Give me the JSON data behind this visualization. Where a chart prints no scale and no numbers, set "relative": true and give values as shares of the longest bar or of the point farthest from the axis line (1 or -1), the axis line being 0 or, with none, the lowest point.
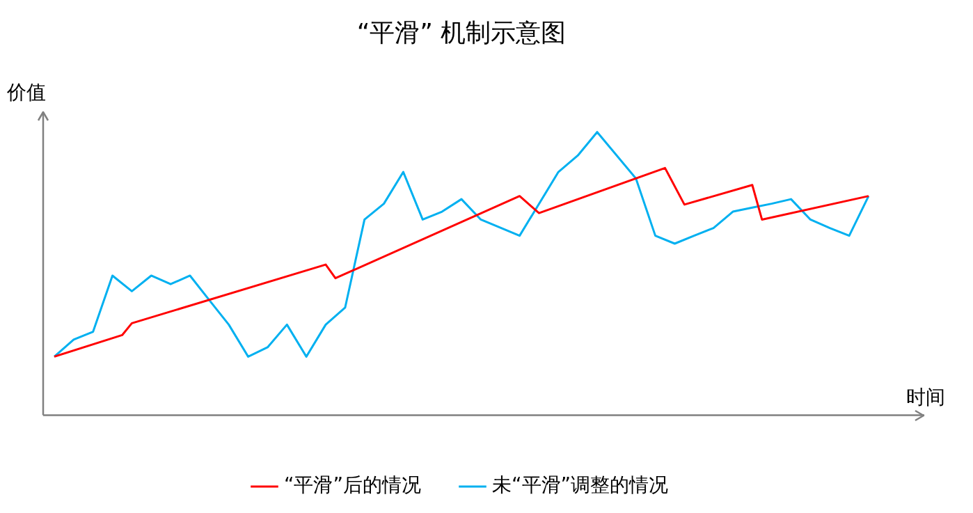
{
  "chart_data": {
    "type": "line",
    "title": "“平滑” 机制示意图",
    "xlabel": "时间",
    "ylabel": "价值",
    "relative": true,
    "legend": "bottom",
    "marker": "none",
    "line_style": "solid",
    "categories": [
      null,
      null,
      null,
      null,
      null,
      null,
      null,
      null,
      null,
      null,
      null,
      null,
      null,
      null,
      null,
      null,
      null,
      null,
      null,
      null,
      null,
      null,
      null,
      null,
      null,
      null,
      null,
      null,
      null,
      null,
      null,
      null,
      null,
      null,
      null,
      null,
      null,
      null,
      null,
      null,
      null,
      null,
      null,
      null,
      null,
      null,
      null,
      null,
      null,
      null,
      null,
      null,
      null,
      null,
      null,
      null,
      null,
      null,
      null,
      null,
      null,
      null,
      null,
      null,
      null,
      null,
      null,
      null,
      null,
      null,
      null,
      null,
      null,
      null,
      null,
      null,
      null,
      null,
      null,
      null,
      null,
      null,
      null,
      null,
      null
    ],
    "series": [
      {
        "name": "“平滑”后的情况",
        "color": "#ff0000",
        "values": [
          0.207,
          null,
          null,
          null,
          null,
          null,
          null,
          0.283,
          0.325,
          null,
          null,
          null,
          null,
          null,
          null,
          null,
          null,
          null,
          null,
          null,
          null,
          null,
          null,
          null,
          null,
          null,
          null,
          null,
          0.532,
          0.484,
          null,
          null,
          null,
          null,
          null,
          null,
          null,
          null,
          null,
          null,
          null,
          null,
          null,
          null,
          null,
          null,
          null,
          null,
          0.774,
          null,
          0.714,
          null,
          null,
          null,
          null,
          null,
          null,
          null,
          null,
          null,
          null,
          null,
          null,
          0.873,
          null,
          0.744,
          null,
          null,
          null,
          null,
          null,
          null,
          0.813,
          0.691,
          null,
          null,
          null,
          null,
          null,
          null,
          null,
          null,
          null,
          null,
          0.774
        ]
      },
      {
        "name": "未“平滑”调整的情况",
        "color": "#00b0f0",
        "values": [
          0.207,
          null,
          0.267,
          null,
          0.295,
          null,
          0.493,
          null,
          0.438,
          null,
          0.493,
          null,
          0.463,
          null,
          0.493,
          null,
          0.406,
          null,
          0.32,
          null,
          0.207,
          null,
          0.24,
          null,
          0.32,
          null,
          0.207,
          null,
          0.32,
          null,
          0.38,
          null,
          0.691,
          null,
          0.747,
          null,
          0.859,
          null,
          0.691,
          null,
          0.719,
          null,
          0.763,
          null,
          0.691,
          null,
          null,
          null,
          0.634,
          null,
          null,
          null,
          0.859,
          null,
          0.917,
          null,
          1.0,
          null,
          null,
          null,
          0.836,
          null,
          0.634,
          null,
          0.606,
          null,
          0.634,
          null,
          0.661,
          null,
          0.719,
          null,
          0.733,
          null,
          0.747,
          null,
          0.763,
          null,
          0.691,
          null,
          0.661,
          null,
          0.634,
          null,
          0.774
        ]
      }
    ]
  }
}
